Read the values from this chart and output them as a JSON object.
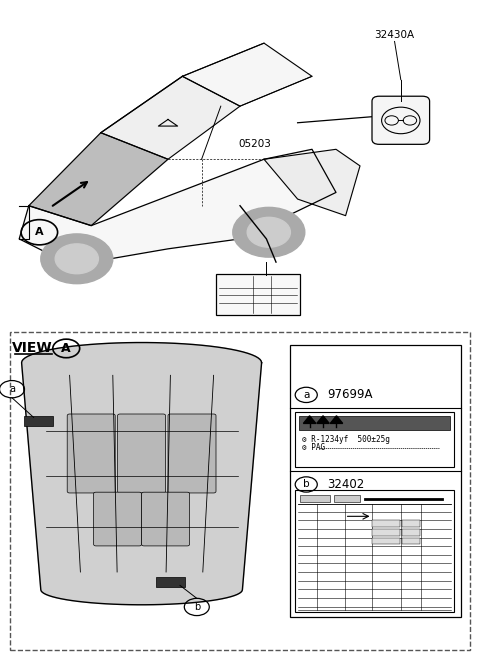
{
  "bg_color": "#ffffff",
  "top_label_32430A": "32430A",
  "top_label_05203": "05203",
  "bottom_view_label": "VIEW",
  "bottom_circle_label": "A",
  "part_a_num": "a",
  "part_b_num": "b",
  "part_a_label": "97699A",
  "part_b_label": "32402",
  "ac_line1": "R-1234yf  500±25g",
  "ac_line2": "PAG",
  "gear_char": "⚙",
  "font_size_label": 8,
  "font_size_part": 9,
  "car_hood_color": "#888888",
  "car_body_color": "#f5f5f5",
  "hood_panel_color": "#c8c8c8",
  "hood_panel_inner_color": "#b8b8b8"
}
